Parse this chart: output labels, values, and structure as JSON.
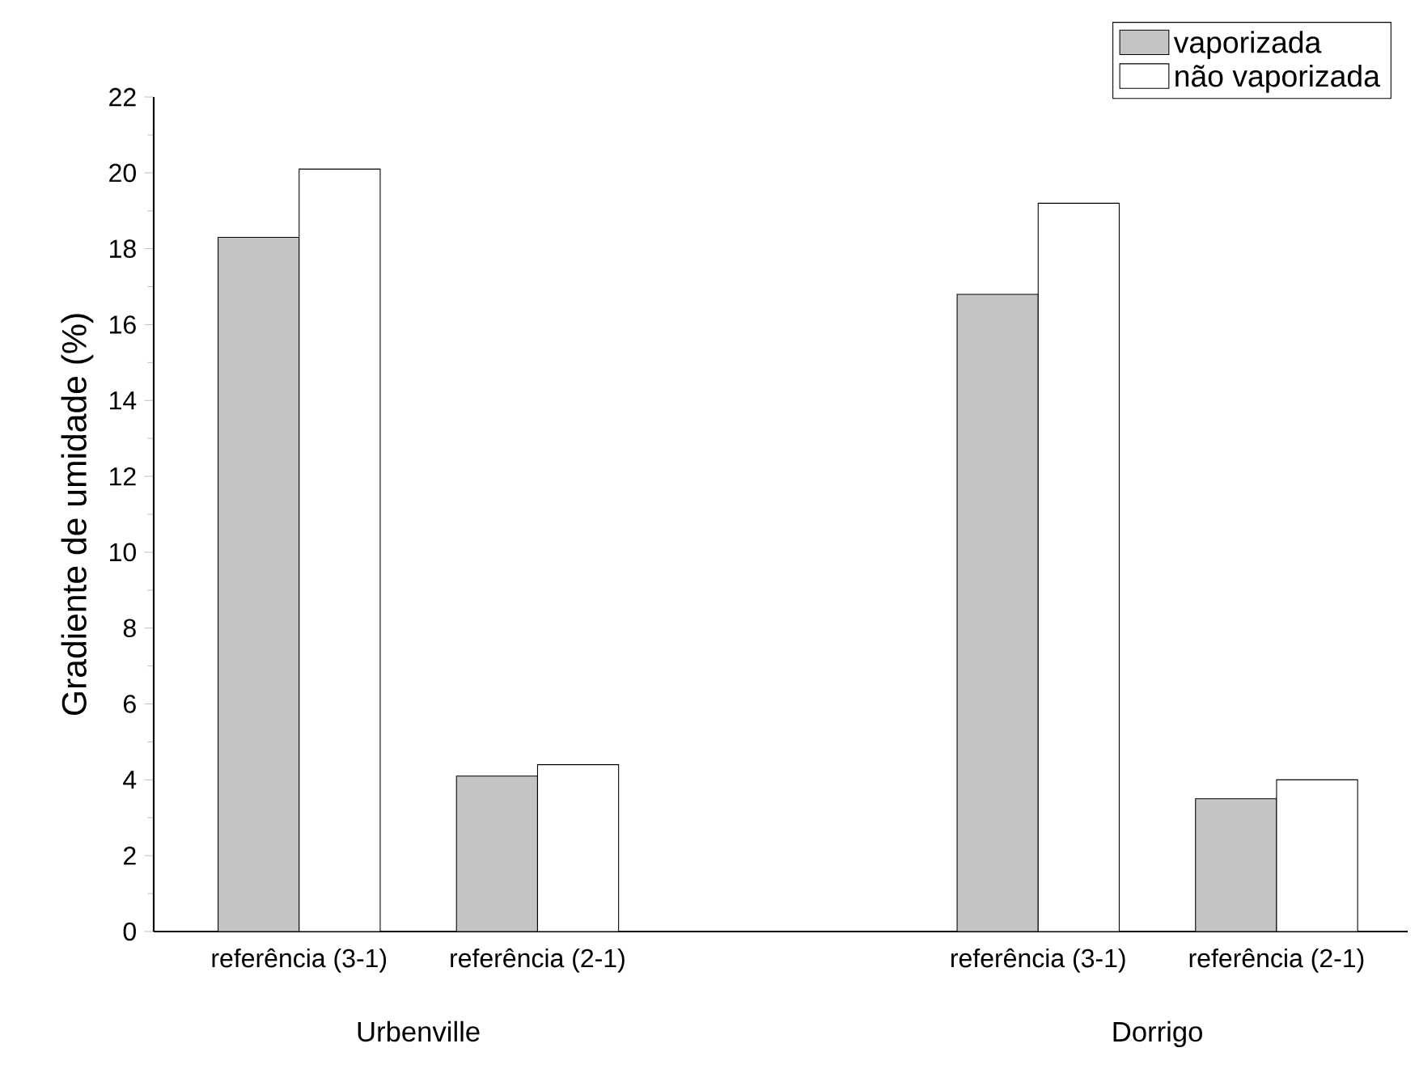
{
  "chart_data": {
    "type": "bar",
    "ylabel": "Gradiente de umidade (%)",
    "categories": [
      "referência (3-1)",
      "referência (2-1)",
      "referência (3-1)",
      "referência (2-1)"
    ],
    "series": [
      {
        "name": "vaporizada",
        "color": "#c4c4c4",
        "values": [
          18.3,
          4.1,
          16.8,
          3.5
        ]
      },
      {
        "name": "não vaporizada",
        "color": "#ffffff",
        "values": [
          20.1,
          4.4,
          19.2,
          4.0
        ]
      }
    ],
    "ylim": [
      0,
      22
    ],
    "yticks": [
      0,
      2,
      4,
      6,
      8,
      10,
      12,
      14,
      16,
      18,
      20,
      22
    ],
    "annotations": [
      "Urbenville",
      "Dorrigo"
    ],
    "legend": "top right",
    "grid": false
  }
}
